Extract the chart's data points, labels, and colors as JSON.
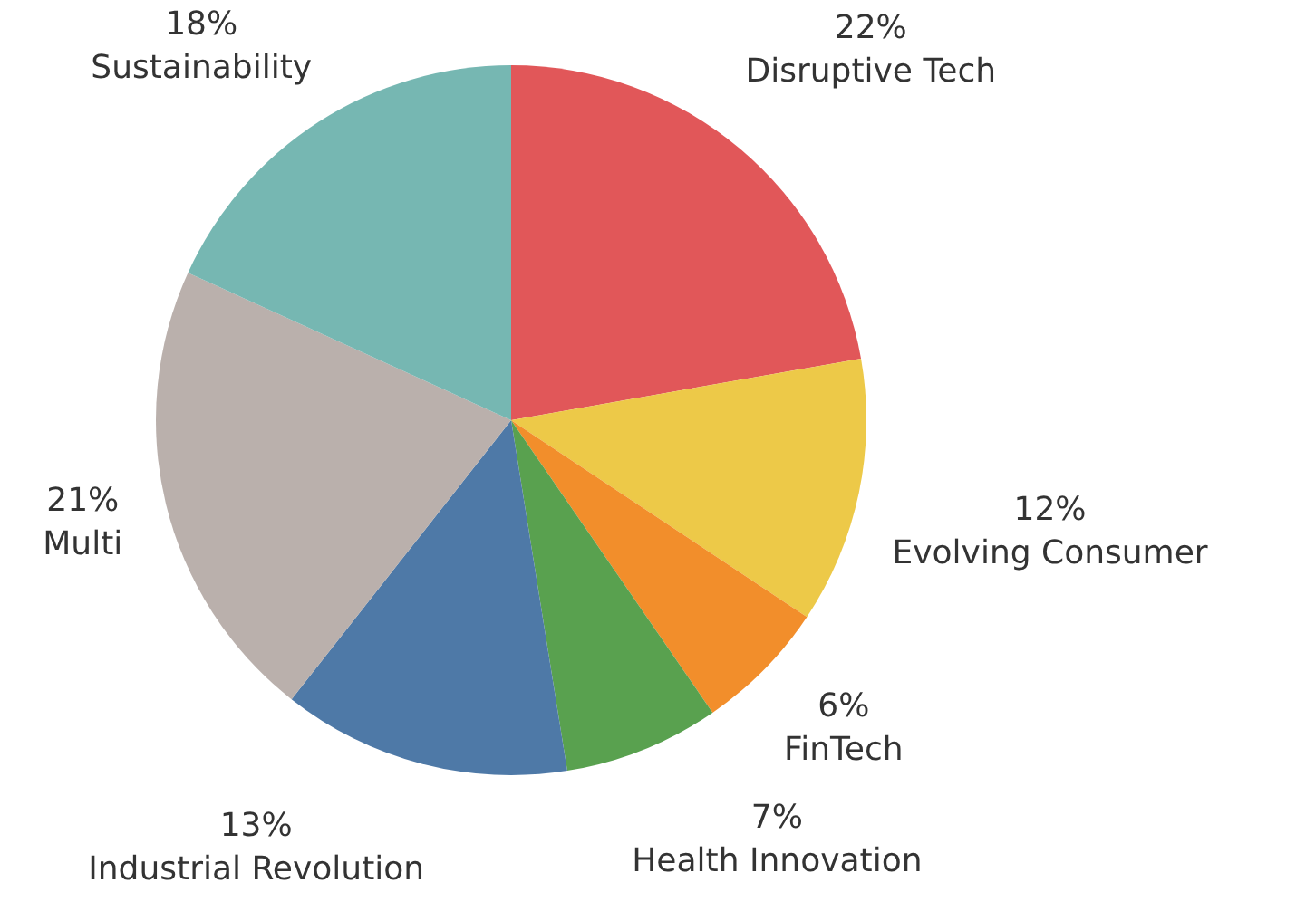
{
  "chart_data": {
    "type": "pie",
    "categories": [
      "Disruptive Tech",
      "Evolving Consumer",
      "FinTech",
      "Health Innovation",
      "Industrial Revolution",
      "Multi",
      "Sustainability"
    ],
    "values": [
      22,
      12,
      6,
      7,
      13,
      21,
      18
    ],
    "value_labels": [
      "22%",
      "12%",
      "6%",
      "7%",
      "13%",
      "21%",
      "18%"
    ],
    "colors": [
      "#e15759",
      "#edc948",
      "#f28e2b",
      "#59a14f",
      "#4e79a7",
      "#bab0ac",
      "#76b7b2"
    ]
  }
}
